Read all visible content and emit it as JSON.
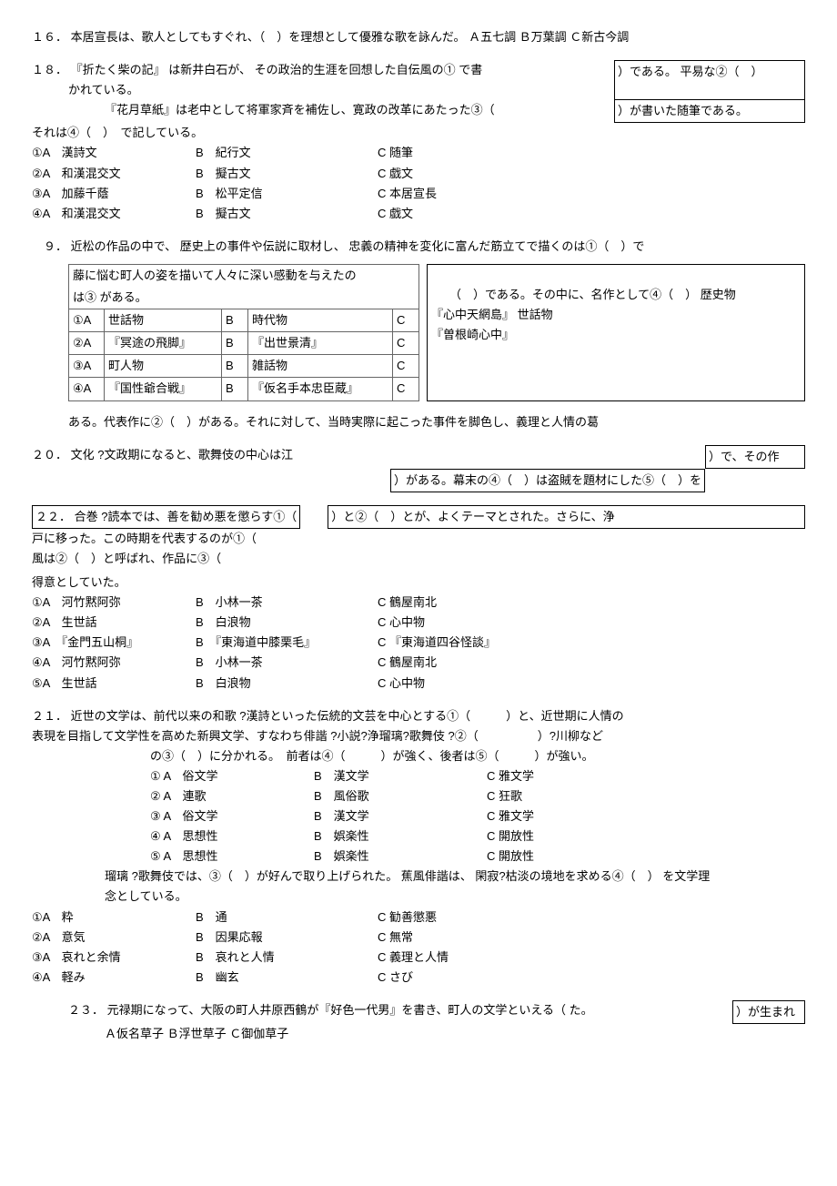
{
  "q16": {
    "num": "１６．",
    "text": "本居宣長は、歌人としてもすぐれ、（　）を理想として優雅な歌を詠んだ。 Ａ五七調 Ｂ万葉調 Ｃ新古今調"
  },
  "q18": {
    "num": "１８．",
    "line1a": "『折たく柴の記』 は新井白石が、 その政治的生涯を回想した自伝風の① で書",
    "box1": "）である。 平易な②（　）",
    "line1b": "かれている。",
    "line2a": "『花月草紙』は老中として将軍家斉を補佐し、寛政の改革にあたった③（",
    "box2": "）が書いた随筆である。",
    "line3": "それは④（　）　で記している。",
    "opts": [
      {
        "n": "①A",
        "a": "漢詩文",
        "bl": "B",
        "b": "紀行文",
        "cl": "C",
        "c": "随筆"
      },
      {
        "n": "②A",
        "a": "和漢混交文",
        "bl": "B",
        "b": "擬古文",
        "cl": "C",
        "c": "戯文"
      },
      {
        "n": "③A",
        "a": "加藤千蔭",
        "bl": "B",
        "b": "松平定信",
        "cl": "C",
        "c": "本居宣長"
      },
      {
        "n": "④A",
        "a": "和漢混交文",
        "bl": "B",
        "b": "擬古文",
        "cl": "C",
        "c": "戯文"
      }
    ]
  },
  "q9": {
    "num": "　９．",
    "text": "近松の作品の中で、 歴史上の事件や伝説に取材し、 忠義の精神を変化に富んだ筋立てで描くのは①（　）で",
    "tbl_head1": "藤に悩む町人の姿を描いて人々に深い感動を与えたの",
    "tbl_head2": "は③ がある。",
    "rows": [
      {
        "a": "①A",
        "av": "世話物",
        "b": "B",
        "bv": "時代物",
        "c": "C"
      },
      {
        "a": "②A",
        "av": "『冥途の飛脚』",
        "b": "B",
        "bv": "『出世景清』",
        "c": "C"
      },
      {
        "a": "③A",
        "av": "町人物",
        "b": "B",
        "bv": "雑話物",
        "c": "C"
      },
      {
        "a": "④A",
        "av": "『国性爺合戦』",
        "b": "B",
        "bv": "『仮名手本忠臣蔵』",
        "c": "C"
      }
    ],
    "right1": "（　）である。その中に、名作として④（　） 歴史物",
    "right2": "『心中天網島』 世話物",
    "right3": "『曽根崎心中』",
    "after": "ある。代表作に②（　）がある。それに対して、当時実際に起こった事件を脚色し、義理と人情の葛"
  },
  "q20": {
    "num": "２０．",
    "text": "文化 ?文政期になると、歌舞伎の中心は江",
    "box1": "）で、その作",
    "box2": "）がある。幕末の④（　）は盗賊を題材にした⑤（　）を"
  },
  "q22": {
    "num": "２２．",
    "box1": "合巻 ?読本では、善を勧め悪を懲らす①（",
    "box2": "）と②（　）とが、よくテーマとされた。さらに、浄",
    "line1": "戸に移った。この時期を代表するのが①（",
    "line2": "風は②（　）と呼ばれ、作品に③（",
    "line3": "得意としていた。",
    "opts": [
      {
        "n": "①A",
        "a": "河竹黙阿弥",
        "bl": "B",
        "b": "小林一茶",
        "cl": "C",
        "c": "鶴屋南北"
      },
      {
        "n": "②A",
        "a": "生世話",
        "bl": "B",
        "b": "白浪物",
        "cl": "C",
        "c": "心中物"
      },
      {
        "n": "③A",
        "a": "『金門五山桐』",
        "bl": "B",
        "b": "『東海道中膝栗毛』",
        "cl": "C",
        "c": "『東海道四谷怪談』"
      },
      {
        "n": "④A",
        "a": "河竹黙阿弥",
        "bl": "B",
        "b": "小林一茶",
        "cl": "C",
        "c": "鶴屋南北"
      },
      {
        "n": "⑤A",
        "a": "生世話",
        "bl": "B",
        "b": "白浪物",
        "cl": "C",
        "c": "心中物"
      }
    ]
  },
  "q21": {
    "num": "２１．",
    "line1": "近世の文学は、前代以来の和歌 ?漢詩といった伝統的文芸を中心とする①（　　　）と、近世期に人情の",
    "line2": "表現を目指して文学性を高めた新興文学、すなわち俳諧 ?小説?浄瑠璃?歌舞伎 ?②（　　　　　）?川柳など",
    "line3": "の③（　）に分かれる。　前者は④（　　　）が強く、後者は⑤（　　　）が強い。",
    "opts": [
      {
        "n": "① A",
        "a": "俗文学",
        "bl": "B",
        "b": "漢文学",
        "cl": "C",
        "c": "雅文学"
      },
      {
        "n": "② A",
        "a": "連歌",
        "bl": "B",
        "b": "風俗歌",
        "cl": "C",
        "c": "狂歌"
      },
      {
        "n": "③ A",
        "a": "俗文学",
        "bl": "B",
        "b": "漢文学",
        "cl": "C",
        "c": "雅文学"
      },
      {
        "n": "④ A",
        "a": "思想性",
        "bl": "B",
        "b": "娯楽性",
        "cl": "C",
        "c": "開放性"
      },
      {
        "n": "⑤ A",
        "a": "思想性",
        "bl": "B",
        "b": "娯楽性",
        "cl": "C",
        "c": "開放性"
      }
    ],
    "line4": "瑠璃 ?歌舞伎では、③（　）が好んで取り上げられた。 蕉風俳諧は、 閑寂?枯淡の境地を求める④（　） を文学理",
    "line5": "念としている。",
    "opts2": [
      {
        "n": "①A",
        "a": "粋",
        "bl": "B",
        "b": "通",
        "cl": "C",
        "c": "勧善懲悪"
      },
      {
        "n": "②A",
        "a": "意気",
        "bl": "B",
        "b": "因果応報",
        "cl": "C",
        "c": "無常"
      },
      {
        "n": "③A",
        "a": "哀れと余情",
        "bl": "B",
        "b": "哀れと人情",
        "cl": "C",
        "c": "義理と人情"
      },
      {
        "n": "④A",
        "a": "軽み",
        "bl": "B",
        "b": "幽玄",
        "cl": "C",
        "c": "さび"
      }
    ]
  },
  "q23": {
    "num": "２３．",
    "text": "元禄期になって、大阪の町人井原西鶴が『好色一代男』を書き、町人の文学といえる（ た。",
    "box": "）が生まれ",
    "opts": "Ａ仮名草子 Ｂ浮世草子 Ｃ御伽草子"
  }
}
